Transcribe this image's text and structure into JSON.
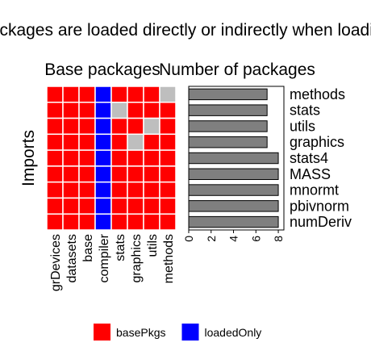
{
  "suptitle": "Packages are loaded directly or indirectly when loading",
  "colors": {
    "basePkgs": "#ff0000",
    "loadedOnly": "#0000ff",
    "missing": "#bebebe",
    "bar": "#7f7f7f",
    "grid": "#ffffff"
  },
  "legend": {
    "items": [
      {
        "label": "basePkgs",
        "color": "#ff0000"
      },
      {
        "label": "loadedOnly",
        "color": "#0000ff"
      }
    ]
  },
  "chart_data": [
    {
      "type": "heatmap",
      "title": "Base packages",
      "ylabel": "Imports",
      "columns": [
        "grDevices",
        "datasets",
        "base",
        "compiler",
        "stats",
        "graphics",
        "utils",
        "methods"
      ],
      "rows": [
        "methods",
        "stats",
        "utils",
        "graphics",
        "stats4",
        "MASS",
        "mnormt",
        "pbivnorm",
        "numDeriv"
      ],
      "values": [
        [
          "basePkgs",
          "basePkgs",
          "basePkgs",
          "loadedOnly",
          "basePkgs",
          "basePkgs",
          "basePkgs",
          "missing"
        ],
        [
          "basePkgs",
          "basePkgs",
          "basePkgs",
          "loadedOnly",
          "missing",
          "basePkgs",
          "basePkgs",
          "basePkgs"
        ],
        [
          "basePkgs",
          "basePkgs",
          "basePkgs",
          "loadedOnly",
          "basePkgs",
          "basePkgs",
          "missing",
          "basePkgs"
        ],
        [
          "basePkgs",
          "basePkgs",
          "basePkgs",
          "loadedOnly",
          "basePkgs",
          "missing",
          "basePkgs",
          "basePkgs"
        ],
        [
          "basePkgs",
          "basePkgs",
          "basePkgs",
          "loadedOnly",
          "basePkgs",
          "basePkgs",
          "basePkgs",
          "basePkgs"
        ],
        [
          "basePkgs",
          "basePkgs",
          "basePkgs",
          "loadedOnly",
          "basePkgs",
          "basePkgs",
          "basePkgs",
          "basePkgs"
        ],
        [
          "basePkgs",
          "basePkgs",
          "basePkgs",
          "loadedOnly",
          "basePkgs",
          "basePkgs",
          "basePkgs",
          "basePkgs"
        ],
        [
          "basePkgs",
          "basePkgs",
          "basePkgs",
          "loadedOnly",
          "basePkgs",
          "basePkgs",
          "basePkgs",
          "basePkgs"
        ],
        [
          "basePkgs",
          "basePkgs",
          "basePkgs",
          "loadedOnly",
          "basePkgs",
          "basePkgs",
          "basePkgs",
          "basePkgs"
        ]
      ],
      "legend_position": "bottom"
    },
    {
      "type": "bar",
      "orientation": "horizontal",
      "title": "Number of packages",
      "categories": [
        "methods",
        "stats",
        "utils",
        "graphics",
        "stats4",
        "MASS",
        "mnormt",
        "pbivnorm",
        "numDeriv"
      ],
      "values": [
        7,
        7,
        7,
        7,
        8,
        8,
        8,
        8,
        8
      ],
      "xlim": [
        0,
        8.5
      ],
      "xticks": [
        0,
        2,
        4,
        6,
        8
      ],
      "grid": false
    }
  ]
}
